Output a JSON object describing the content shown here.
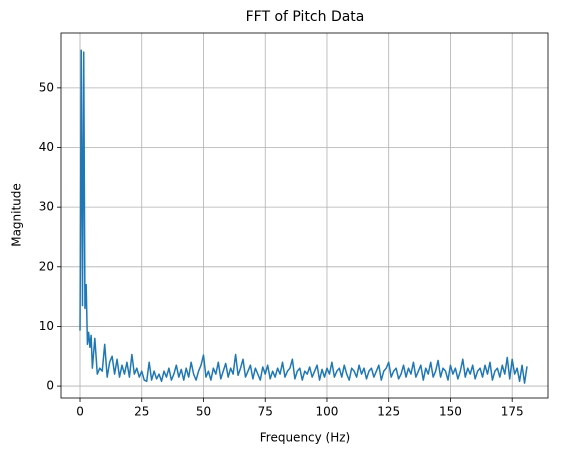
{
  "chart_data": {
    "type": "line",
    "title": "FFT of Pitch Data",
    "x_label": "Frequency (Hz)",
    "y_label": "Magnitude",
    "color": "#1f77b4",
    "grid": true,
    "xlim": [
      -7.7,
      189.5
    ],
    "ylim": [
      -2.0,
      59.2
    ],
    "xticks": [
      0,
      25,
      50,
      75,
      100,
      125,
      150,
      175
    ],
    "yticks": [
      0,
      10,
      20,
      30,
      40,
      50
    ],
    "x": [
      0,
      0.5,
      1,
      1.5,
      2,
      2.5,
      3,
      3.5,
      4,
      4.5,
      5,
      6,
      7,
      8,
      9,
      10,
      11,
      12,
      13,
      14,
      15,
      16,
      17,
      18,
      19,
      20,
      21,
      22,
      23,
      24,
      25,
      26,
      27,
      28,
      29,
      30,
      31,
      32,
      33,
      34,
      35,
      36,
      37,
      38,
      39,
      40,
      41,
      42,
      43,
      44,
      45,
      46,
      47,
      48,
      49,
      50,
      51,
      52,
      53,
      54,
      55,
      56,
      57,
      58,
      59,
      60,
      61,
      62,
      63,
      64,
      65,
      66,
      67,
      68,
      69,
      70,
      71,
      72,
      73,
      74,
      75,
      76,
      77,
      78,
      79,
      80,
      81,
      82,
      83,
      84,
      85,
      86,
      87,
      88,
      89,
      90,
      91,
      92,
      93,
      94,
      95,
      96,
      97,
      98,
      99,
      100,
      101,
      102,
      103,
      104,
      105,
      106,
      107,
      108,
      109,
      110,
      111,
      112,
      113,
      114,
      115,
      116,
      117,
      118,
      119,
      120,
      121,
      122,
      123,
      124,
      125,
      126,
      127,
      128,
      129,
      130,
      131,
      132,
      133,
      134,
      135,
      136,
      137,
      138,
      139,
      140,
      141,
      142,
      143,
      144,
      145,
      146,
      147,
      148,
      149,
      150,
      151,
      152,
      153,
      154,
      155,
      156,
      157,
      158,
      159,
      160,
      161,
      162,
      163,
      164,
      165,
      166,
      167,
      168,
      169,
      170,
      171,
      172,
      173,
      174,
      175,
      176,
      177,
      178,
      179,
      180,
      181
    ],
    "values": [
      9.3,
      56.3,
      13.5,
      56,
      13,
      17,
      7,
      9,
      6.5,
      8.5,
      3,
      8,
      2,
      3,
      2.5,
      7,
      1.5,
      4,
      5,
      2,
      4.5,
      1.5,
      3.5,
      2,
      4,
      1.5,
      5.3,
      2,
      3,
      1.5,
      2.5,
      1,
      0.8,
      4,
      1,
      2.5,
      1.2,
      2,
      0.8,
      2.5,
      1.5,
      3,
      1,
      2,
      3.5,
      1.5,
      2.8,
      1,
      3,
      1.5,
      4,
      2,
      1,
      2.5,
      3.5,
      5.2,
      1.5,
      2.5,
      1,
      3,
      2,
      4,
      1.2,
      2.5,
      3.8,
      1.5,
      3,
      2,
      5.3,
      1.8,
      3,
      4.5,
      1.5,
      2.5,
      3.5,
      1.2,
      3,
      2,
      1,
      3.2,
      2,
      3.5,
      1.2,
      2.5,
      1.5,
      3,
      2,
      4,
      1.5,
      2.5,
      3,
      4.5,
      1.2,
      2.5,
      3,
      1,
      2.5,
      2,
      3.2,
      1.5,
      2.5,
      3.5,
      1,
      2.8,
      1.5,
      3,
      2,
      4,
      1.5,
      2.5,
      3,
      1.5,
      3.5,
      2,
      1,
      3,
      2.5,
      1.5,
      3.5,
      2,
      3,
      1.2,
      2.5,
      3,
      1.5,
      2.5,
      3.5,
      1,
      2.5,
      3,
      4,
      1.5,
      2.5,
      3,
      1.2,
      2,
      3.5,
      1.5,
      3,
      2,
      4,
      1.5,
      2.5,
      3.5,
      1,
      3,
      2,
      4,
      1.5,
      2.5,
      4.3,
      1.5,
      3,
      2.5,
      1,
      3.5,
      2,
      3,
      1.2,
      2.5,
      4.5,
      1.5,
      3,
      2,
      3.5,
      1.2,
      2.5,
      3,
      1.5,
      3.5,
      2,
      4,
      1,
      2.5,
      3,
      1.5,
      3.5,
      2,
      4.8,
      1.2,
      4.5,
      2,
      3,
      0.8,
      3.5,
      0.5,
      3.3
    ]
  }
}
